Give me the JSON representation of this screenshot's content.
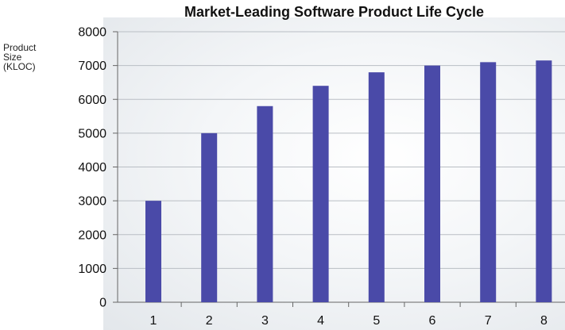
{
  "chart_data": {
    "type": "bar",
    "title": "Market-Leading Software Product Life Cycle",
    "ylabel": [
      "Product",
      "Size",
      "(KLOC)"
    ],
    "xlabel": "",
    "categories": [
      "1",
      "2",
      "3",
      "4",
      "5",
      "6",
      "7",
      "8"
    ],
    "values": [
      3000,
      5000,
      5800,
      6400,
      6800,
      7000,
      7100,
      7150
    ],
    "ylim": [
      0,
      8000
    ],
    "yticks": [
      "0",
      "1000",
      "2000",
      "3000",
      "4000",
      "5000",
      "6000",
      "7000",
      "8000"
    ],
    "grid": true,
    "legend": "none",
    "bar_color": "#4a4aa8",
    "grid_color": "#b9bec4"
  }
}
